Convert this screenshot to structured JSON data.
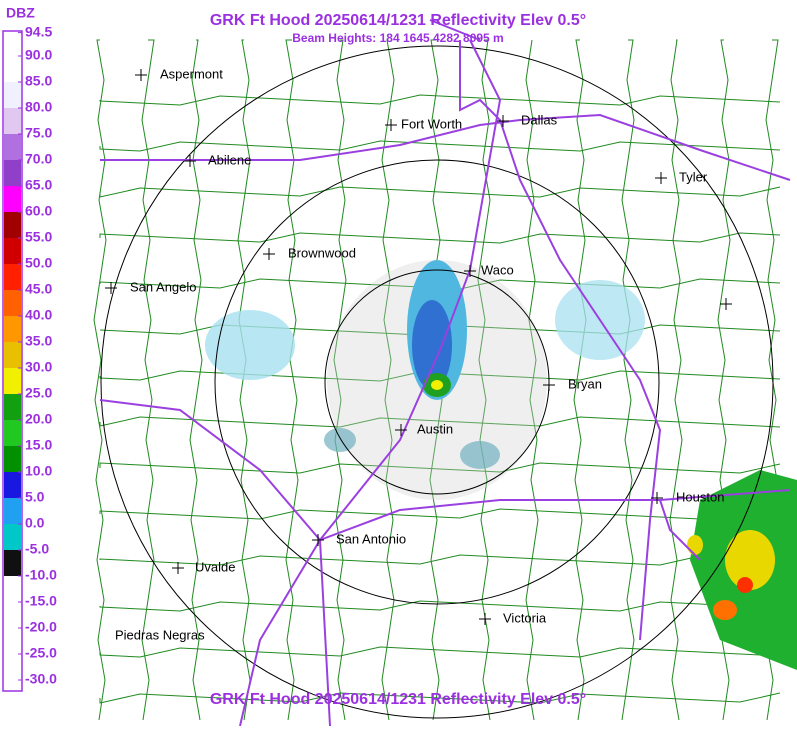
{
  "header": {
    "title": "GRK Ft Hood 20250614/1231 Reflectivity Elev 0.5°",
    "subtitle": "Beam Heights: 184 1645 4282 8095 m"
  },
  "legend": {
    "unit": "DBZ",
    "ticks": [
      {
        "value": 94.5,
        "label": "94.5"
      },
      {
        "value": 90,
        "label": "90.0"
      },
      {
        "value": 85,
        "label": "85.0"
      },
      {
        "value": 80,
        "label": "80.0"
      },
      {
        "value": 75,
        "label": "75.0"
      },
      {
        "value": 70,
        "label": "70.0"
      },
      {
        "value": 65,
        "label": "65.0"
      },
      {
        "value": 60,
        "label": "60.0"
      },
      {
        "value": 55,
        "label": "55.0"
      },
      {
        "value": 50,
        "label": "50.0"
      },
      {
        "value": 45,
        "label": "45.0"
      },
      {
        "value": 40,
        "label": "40.0"
      },
      {
        "value": 35,
        "label": "35.0"
      },
      {
        "value": 30,
        "label": "30.0"
      },
      {
        "value": 25,
        "label": "25.0"
      },
      {
        "value": 20,
        "label": "20.0"
      },
      {
        "value": 15,
        "label": "15.0"
      },
      {
        "value": 10,
        "label": "10.0"
      },
      {
        "value": 5,
        "label": "5.0"
      },
      {
        "value": 0,
        "label": "0.0"
      },
      {
        "value": -5,
        "label": "-5.0"
      },
      {
        "value": -10,
        "label": "-10.0"
      },
      {
        "value": -15,
        "label": "-15.0"
      },
      {
        "value": -20,
        "label": "-20.0"
      },
      {
        "value": -25,
        "label": "-25.0"
      },
      {
        "value": -30,
        "label": "-30.0"
      }
    ],
    "colors": [
      "#ffffff",
      "#ffffff",
      "#f0f0ff",
      "#e0c8f0",
      "#b070e0",
      "#9040c8",
      "#ff00ff",
      "#a00000",
      "#d00000",
      "#ff2000",
      "#ff6000",
      "#ff9800",
      "#e8c000",
      "#f0f000",
      "#10a010",
      "#20c820",
      "#009000",
      "#1818e0",
      "#20a0f0",
      "#00c8c8",
      "#101010",
      "#ffffff",
      "#ffffff",
      "#ffffff",
      "#ffffff"
    ]
  },
  "cities": [
    "Aspermont",
    "Fort Worth",
    "Dallas",
    "Abilene",
    "Tyler",
    "Brownwood",
    "Waco",
    "San Angelo",
    "Bryan",
    "Austin",
    "Houston",
    "San Antonio",
    "Uvalde",
    "Victoria",
    "Piedras Negras"
  ],
  "footer": {
    "title": "GRK Ft Hood 20250614/1231 Reflectivity Elev 0.5°"
  }
}
